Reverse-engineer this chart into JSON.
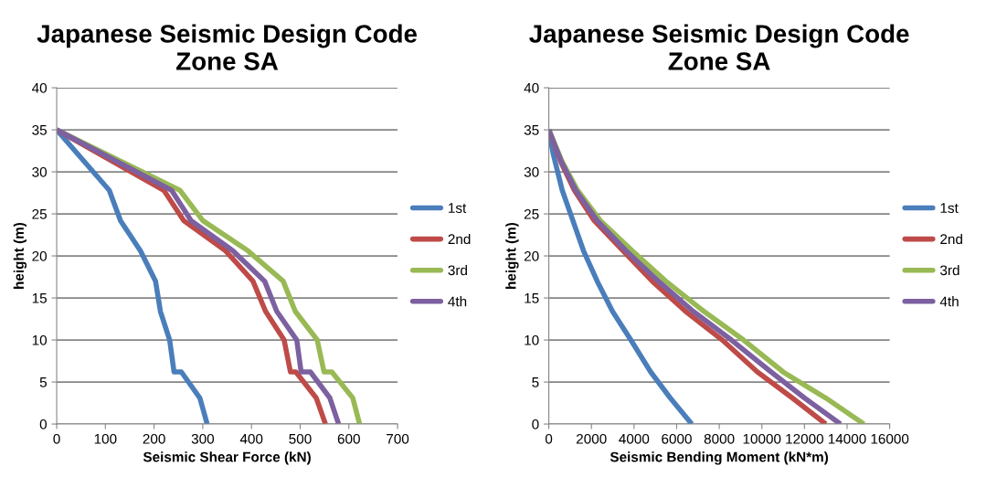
{
  "chart_data": [
    {
      "type": "line",
      "title": "Japanese Seismic Design Code\nZone SA",
      "xlabel": "Seismic Shear Force (kN)",
      "ylabel": "height (m)",
      "xlim": [
        0,
        700
      ],
      "xticks": [
        0,
        100,
        200,
        300,
        400,
        500,
        600,
        700
      ],
      "ylim": [
        0,
        40
      ],
      "yticks": [
        0,
        5,
        10,
        15,
        20,
        25,
        30,
        35,
        40
      ],
      "grid": "y",
      "legend": "right",
      "marker": "none",
      "line_style": "solid",
      "series": [
        {
          "name": "1st",
          "color": "#4a7ebb",
          "x": [
            309,
            294,
            256,
            241,
            232,
            213,
            203,
            172,
            131,
            108,
            0
          ],
          "values": [
            0,
            3.1,
            6.2,
            6.2,
            10,
            13.4,
            17,
            20.6,
            24.2,
            27.8,
            35
          ]
        },
        {
          "name": "2nd",
          "color": "#be4b48",
          "x": [
            552,
            533,
            491,
            480,
            467,
            429,
            403,
            347,
            261,
            220,
            0
          ],
          "values": [
            0,
            3.1,
            6.2,
            6.2,
            10,
            13.4,
            17,
            20.6,
            24.2,
            27.8,
            35
          ]
        },
        {
          "name": "3rd",
          "color": "#98b954",
          "x": [
            622,
            608,
            565,
            549,
            535,
            490,
            465,
            393,
            300,
            253,
            0
          ],
          "values": [
            0,
            3.1,
            6.2,
            6.2,
            10,
            13.4,
            17,
            20.6,
            24.2,
            27.8,
            35
          ]
        },
        {
          "name": "4th",
          "color": "#7d60a0",
          "x": [
            579,
            561,
            521,
            502,
            493,
            452,
            427,
            362,
            276,
            236,
            0
          ],
          "values": [
            0,
            3.1,
            6.2,
            6.2,
            10,
            13.4,
            17,
            20.6,
            24.2,
            27.8,
            35
          ]
        }
      ]
    },
    {
      "type": "line",
      "title": "Japanese Seismic Design Code\nZone SA",
      "xlabel": "Seismic Bending Moment (kN*m)",
      "ylabel": "height (m)",
      "xlim": [
        0,
        16000
      ],
      "xticks": [
        0,
        2000,
        4000,
        6000,
        8000,
        10000,
        12000,
        14000,
        16000
      ],
      "ylim": [
        0,
        40
      ],
      "yticks": [
        0,
        5,
        10,
        15,
        20,
        25,
        30,
        35,
        40
      ],
      "grid": "y",
      "legend": "right",
      "marker": "none",
      "line_style": "solid",
      "series": [
        {
          "name": "1st",
          "color": "#4a7ebb",
          "x": [
            6710,
            5700,
            4780,
            3850,
            2990,
            2270,
            1630,
            1130,
            630,
            200,
            0
          ],
          "values": [
            0,
            3.1,
            6.2,
            10,
            13.4,
            17,
            20.6,
            24.2,
            27.8,
            32.2,
            35
          ]
        },
        {
          "name": "2nd",
          "color": "#be4b48",
          "x": [
            13000,
            11430,
            9790,
            8140,
            6420,
            4850,
            3490,
            2130,
            1200,
            560,
            0
          ],
          "values": [
            0,
            3.1,
            6.2,
            10,
            13.4,
            17,
            20.6,
            24.2,
            27.8,
            31.2,
            35
          ]
        },
        {
          "name": "3rd",
          "color": "#98b954",
          "x": [
            14790,
            13000,
            11000,
            9140,
            7280,
            5490,
            3920,
            2420,
            1350,
            630,
            0
          ],
          "values": [
            0,
            3.1,
            6.2,
            10,
            13.4,
            17,
            20.6,
            24.2,
            27.8,
            31.2,
            35
          ]
        },
        {
          "name": "4th",
          "color": "#7d60a0",
          "x": [
            13690,
            12000,
            10430,
            8570,
            6780,
            5140,
            3630,
            2270,
            1270,
            590,
            0
          ],
          "values": [
            0,
            3.1,
            6.2,
            10,
            13.4,
            17,
            20.6,
            24.2,
            27.8,
            31.2,
            35
          ]
        }
      ]
    }
  ]
}
